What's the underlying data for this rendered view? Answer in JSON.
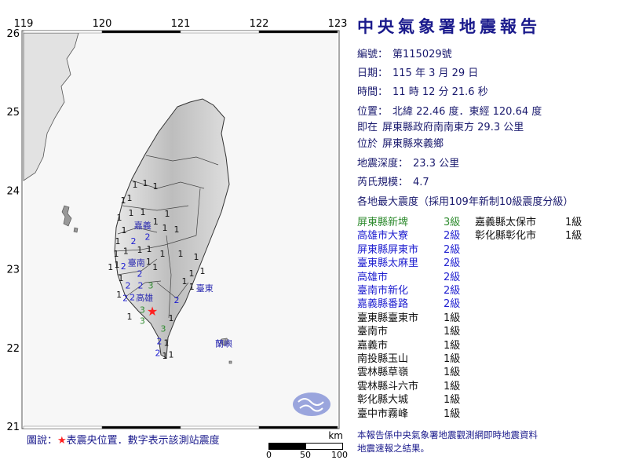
{
  "title": "中央氣象署地震報告",
  "report": {
    "number_label": "編號：",
    "number_value": "第115029號",
    "date_label": "日期：",
    "date_value": "115 年 3 月 29 日",
    "time_label": "時間：",
    "time_value": "11 時 12 分 21.6 秒",
    "location_label": "位置：",
    "location_value": "北緯 22.46 度．東經 120.64 度",
    "relative_label": "即在",
    "relative_value": "屏東縣政府南南東方 29.3 公里",
    "area_label": "位於",
    "area_value": "屏東縣來義鄉",
    "depth_label": "地震深度：",
    "depth_value": "23.3 公里",
    "magnitude_label": "芮氏規模：",
    "magnitude_value": "4.7",
    "intensity_heading": "各地最大震度（採用109年新制10級震度分級）"
  },
  "intensities": [
    {
      "place": "屏東縣新埤",
      "level": "3級",
      "color": "#2e8b2e"
    },
    {
      "place": "高雄市大寮",
      "level": "2級",
      "color": "#1f1fd0"
    },
    {
      "place": "屏東縣屏東市",
      "level": "2級",
      "color": "#1f1fd0"
    },
    {
      "place": "臺東縣太麻里",
      "level": "2級",
      "color": "#1f1fd0"
    },
    {
      "place": "高雄市",
      "level": "2級",
      "color": "#1f1fd0"
    },
    {
      "place": "臺南市新化",
      "level": "2級",
      "color": "#1f1fd0"
    },
    {
      "place": "嘉義縣番路",
      "level": "2級",
      "color": "#1f1fd0"
    },
    {
      "place": "臺東縣臺東市",
      "level": "1級",
      "color": "#111111"
    },
    {
      "place": "臺南市",
      "level": "1級",
      "color": "#111111"
    },
    {
      "place": "嘉義市",
      "level": "1級",
      "color": "#111111"
    },
    {
      "place": "南投縣玉山",
      "level": "1級",
      "color": "#111111"
    },
    {
      "place": "雲林縣草嶺",
      "level": "1級",
      "color": "#111111"
    },
    {
      "place": "雲林縣斗六市",
      "level": "1級",
      "color": "#111111"
    },
    {
      "place": "彰化縣大城",
      "level": "1級",
      "color": "#111111"
    },
    {
      "place": "臺中市霧峰",
      "level": "1級",
      "color": "#111111"
    },
    {
      "place": "嘉義縣太保市",
      "level": "1級",
      "color": "#111111"
    },
    {
      "place": "彰化縣彰化市",
      "level": "1級",
      "color": "#111111"
    }
  ],
  "footnote_line1": "本報告係中央氣象署地震觀測網即時地震資料",
  "footnote_line2": "地震速報之結果。",
  "map": {
    "lon_ticks": [
      "119",
      "120",
      "121",
      "122",
      "123"
    ],
    "lat_ticks": [
      "26",
      "25",
      "24",
      "23",
      "22",
      "21"
    ],
    "lon_range": [
      119,
      123
    ],
    "lat_range": [
      21,
      26
    ],
    "epicenter": {
      "lon": 120.64,
      "lat": 22.46,
      "color": "#ff2020",
      "icon": "star"
    },
    "legend_prefix": "圖說：",
    "legend_star": "★",
    "legend_text": "表震央位置．數字表示該測站震度",
    "scale_unit": "km",
    "scale_ticks": [
      "0",
      "50",
      "100"
    ],
    "place_labels": [
      {
        "text": "嘉義",
        "lon": 120.53,
        "lat": 23.52
      },
      {
        "text": "臺南",
        "lon": 120.38,
        "lat": 23.02
      },
      {
        "text": "高雄",
        "lon": 120.5,
        "lat": 22.65
      },
      {
        "text": "臺東",
        "lon": 121.3,
        "lat": 22.75
      },
      {
        "text": "蘭嶼",
        "lon": 121.55,
        "lat": 22.05
      }
    ],
    "level_colors": {
      "1": "#111111",
      "2": "#1f1fd0",
      "3": "#2e8b2e"
    },
    "stations": [
      {
        "v": "1",
        "lon": 120.42,
        "lat": 24.07
      },
      {
        "v": "1",
        "lon": 120.55,
        "lat": 24.09
      },
      {
        "v": "1",
        "lon": 120.68,
        "lat": 24.05
      },
      {
        "v": "1",
        "lon": 120.35,
        "lat": 23.9
      },
      {
        "v": "1",
        "lon": 120.27,
        "lat": 23.87
      },
      {
        "v": "1",
        "lon": 120.22,
        "lat": 23.65
      },
      {
        "v": "1",
        "lon": 120.37,
        "lat": 23.7
      },
      {
        "v": "1",
        "lon": 120.52,
        "lat": 23.72
      },
      {
        "v": "1",
        "lon": 120.83,
        "lat": 23.7
      },
      {
        "v": "1",
        "lon": 120.67,
        "lat": 23.6
      },
      {
        "v": "1",
        "lon": 120.8,
        "lat": 23.52
      },
      {
        "v": "1",
        "lon": 120.95,
        "lat": 23.5
      },
      {
        "v": "1",
        "lon": 120.28,
        "lat": 23.49
      },
      {
        "v": "2",
        "lon": 120.58,
        "lat": 23.44
      },
      {
        "v": "2",
        "lon": 120.4,
        "lat": 23.35
      },
      {
        "v": "1",
        "lon": 120.2,
        "lat": 23.35
      },
      {
        "v": "1",
        "lon": 120.48,
        "lat": 23.24
      },
      {
        "v": "1",
        "lon": 120.6,
        "lat": 23.25
      },
      {
        "v": "1",
        "lon": 120.77,
        "lat": 23.19
      },
      {
        "v": "1",
        "lon": 121.0,
        "lat": 23.19
      },
      {
        "v": "1",
        "lon": 121.2,
        "lat": 23.15
      },
      {
        "v": "1",
        "lon": 120.18,
        "lat": 23.19
      },
      {
        "v": "1",
        "lon": 120.27,
        "lat": 23.15
      },
      {
        "v": "1",
        "lon": 120.22,
        "lat": 23.05
      },
      {
        "v": "2",
        "lon": 120.33,
        "lat": 23.04
      },
      {
        "v": "1",
        "lon": 120.57,
        "lat": 23.09
      },
      {
        "v": "1",
        "lon": 120.18,
        "lat": 23.02
      },
      {
        "v": "1",
        "lon": 120.63,
        "lat": 23.02
      },
      {
        "v": "1",
        "lon": 120.25,
        "lat": 22.89
      },
      {
        "v": "2",
        "lon": 120.48,
        "lat": 22.9
      },
      {
        "v": "1",
        "lon": 121.28,
        "lat": 22.97
      },
      {
        "v": "1",
        "lon": 121.12,
        "lat": 22.94
      },
      {
        "v": "1",
        "lon": 121.07,
        "lat": 22.84
      },
      {
        "v": "2",
        "lon": 120.32,
        "lat": 22.75
      },
      {
        "v": "2",
        "lon": 120.48,
        "lat": 22.75
      },
      {
        "v": "3",
        "lon": 120.62,
        "lat": 22.77
      },
      {
        "v": "1",
        "lon": 121.15,
        "lat": 22.77
      },
      {
        "v": "1",
        "lon": 120.25,
        "lat": 22.67
      },
      {
        "v": "2",
        "lon": 120.3,
        "lat": 22.65
      },
      {
        "v": "2",
        "lon": 120.4,
        "lat": 22.65
      },
      {
        "v": "2",
        "lon": 120.95,
        "lat": 22.6
      },
      {
        "v": "3",
        "lon": 120.55,
        "lat": 22.5
      },
      {
        "v": "3",
        "lon": 120.62,
        "lat": 22.39
      },
      {
        "v": "1",
        "lon": 120.35,
        "lat": 22.39
      },
      {
        "v": "1",
        "lon": 120.88,
        "lat": 22.37
      },
      {
        "v": "3",
        "lon": 120.78,
        "lat": 22.24
      },
      {
        "v": "2",
        "lon": 120.73,
        "lat": 22.04
      },
      {
        "v": "2",
        "lon": 120.72,
        "lat": 21.97
      },
      {
        "v": "1",
        "lon": 120.82,
        "lat": 22.02
      },
      {
        "v": "1",
        "lon": 120.8,
        "lat": 21.92
      },
      {
        "v": "1",
        "lon": 120.87,
        "lat": 21.92
      }
    ]
  }
}
